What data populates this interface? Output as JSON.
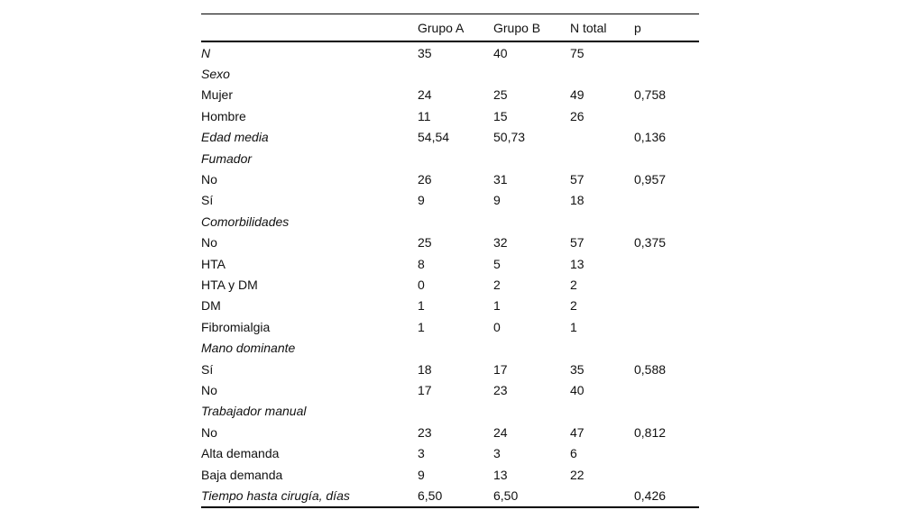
{
  "page": {
    "background": "#ffffff",
    "text_color": "#111111",
    "rule_color": "#000000"
  },
  "table": {
    "columns": [
      {
        "key": "label",
        "label": ""
      },
      {
        "key": "grupo_a",
        "label": "Grupo A"
      },
      {
        "key": "grupo_b",
        "label": "Grupo B"
      },
      {
        "key": "n_total",
        "label": "N total"
      },
      {
        "key": "p",
        "label": "p"
      }
    ],
    "rows": [
      {
        "label": "N",
        "style": "section",
        "grupo_a": "35",
        "grupo_b": "40",
        "n_total": "75",
        "p": ""
      },
      {
        "label": "Sexo",
        "style": "section",
        "grupo_a": "",
        "grupo_b": "",
        "n_total": "",
        "p": ""
      },
      {
        "label": "Mujer",
        "style": "item",
        "grupo_a": "24",
        "grupo_b": "25",
        "n_total": "49",
        "p": "0,758"
      },
      {
        "label": "Hombre",
        "style": "item",
        "grupo_a": "11",
        "grupo_b": "15",
        "n_total": "26",
        "p": ""
      },
      {
        "label": "Edad media",
        "style": "section",
        "grupo_a": "54,54",
        "grupo_b": "50,73",
        "n_total": "",
        "p": "0,136"
      },
      {
        "label": "Fumador",
        "style": "section",
        "grupo_a": "",
        "grupo_b": "",
        "n_total": "",
        "p": ""
      },
      {
        "label": "No",
        "style": "item",
        "grupo_a": "26",
        "grupo_b": "31",
        "n_total": "57",
        "p": "0,957"
      },
      {
        "label": "Sí",
        "style": "item",
        "grupo_a": "9",
        "grupo_b": "9",
        "n_total": "18",
        "p": ""
      },
      {
        "label": "Comorbilidades",
        "style": "section",
        "grupo_a": "",
        "grupo_b": "",
        "n_total": "",
        "p": ""
      },
      {
        "label": "No",
        "style": "item",
        "grupo_a": "25",
        "grupo_b": "32",
        "n_total": "57",
        "p": "0,375"
      },
      {
        "label": "HTA",
        "style": "item",
        "grupo_a": "8",
        "grupo_b": "5",
        "n_total": "13",
        "p": ""
      },
      {
        "label": "HTA y DM",
        "style": "item",
        "grupo_a": "0",
        "grupo_b": "2",
        "n_total": "2",
        "p": ""
      },
      {
        "label": "DM",
        "style": "item",
        "grupo_a": "1",
        "grupo_b": "1",
        "n_total": "2",
        "p": ""
      },
      {
        "label": "Fibromialgia",
        "style": "item",
        "grupo_a": "1",
        "grupo_b": "0",
        "n_total": "1",
        "p": ""
      },
      {
        "label": "Mano dominante",
        "style": "section",
        "grupo_a": "",
        "grupo_b": "",
        "n_total": "",
        "p": ""
      },
      {
        "label": "Sí",
        "style": "item",
        "grupo_a": "18",
        "grupo_b": "17",
        "n_total": "35",
        "p": "0,588"
      },
      {
        "label": "No",
        "style": "item",
        "grupo_a": "17",
        "grupo_b": "23",
        "n_total": "40",
        "p": ""
      },
      {
        "label": "Trabajador manual",
        "style": "section",
        "grupo_a": "",
        "grupo_b": "",
        "n_total": "",
        "p": ""
      },
      {
        "label": "No",
        "style": "item",
        "grupo_a": "23",
        "grupo_b": "24",
        "n_total": "47",
        "p": "0,812"
      },
      {
        "label": "Alta demanda",
        "style": "item",
        "grupo_a": "3",
        "grupo_b": "3",
        "n_total": "6",
        "p": ""
      },
      {
        "label": "Baja demanda",
        "style": "item",
        "grupo_a": "9",
        "grupo_b": "13",
        "n_total": "22",
        "p": ""
      },
      {
        "label": "Tiempo hasta cirugía, días",
        "style": "section",
        "grupo_a": "6,50",
        "grupo_b": "6,50",
        "n_total": "",
        "p": "0,426"
      }
    ]
  }
}
